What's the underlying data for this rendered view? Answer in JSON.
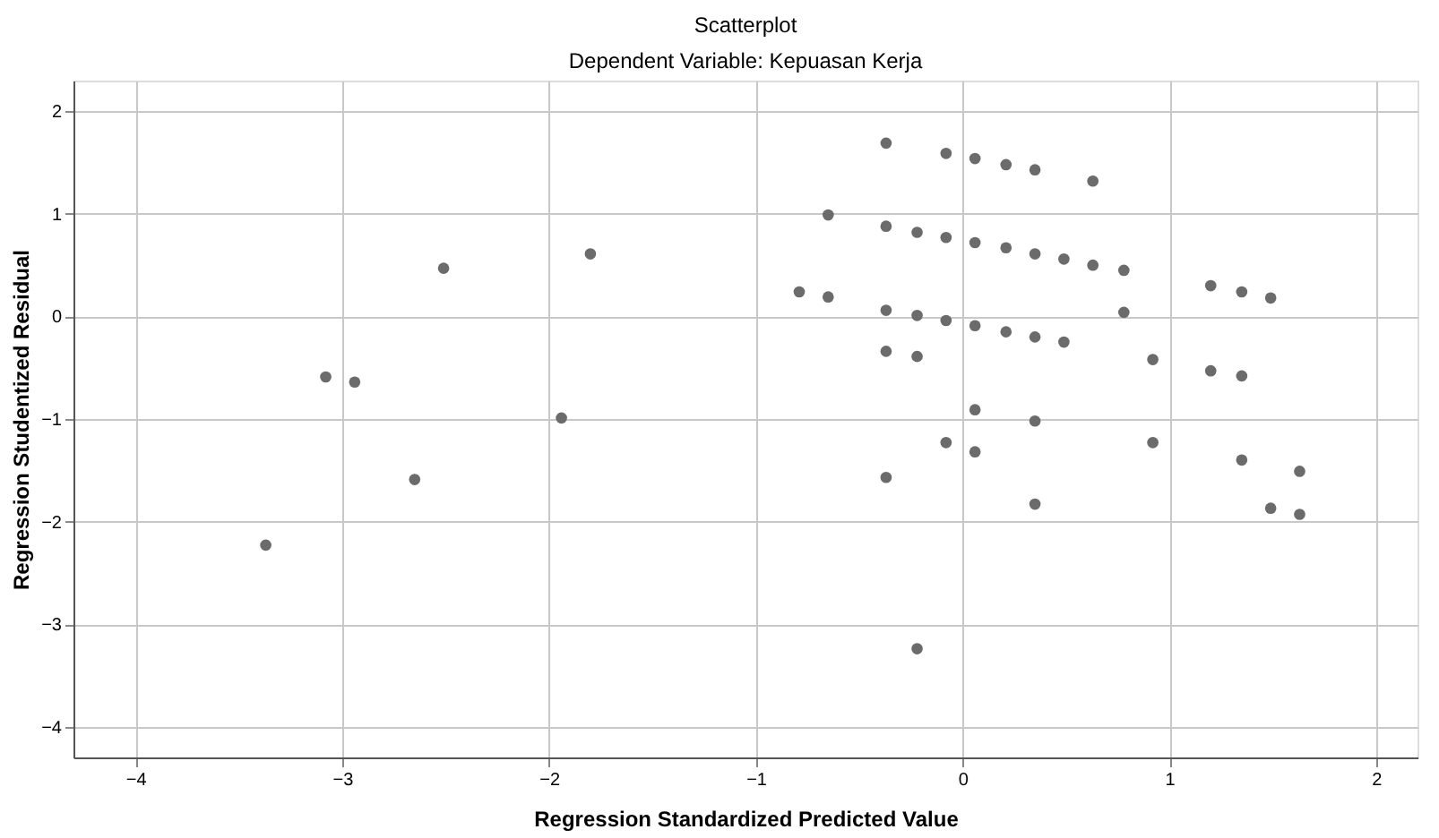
{
  "chart_data": {
    "type": "scatter",
    "title": "Scatterplot",
    "subtitle": "Dependent Variable: Kepuasan Kerja",
    "xlabel": "Regression Standardized Predicted Value",
    "ylabel": "Regression Studentized Residual",
    "x": [
      -3.37,
      -3.08,
      -2.94,
      -2.65,
      -2.51,
      -1.94,
      -1.8,
      -0.37,
      -0.08,
      0.06,
      0.21,
      0.35,
      0.63,
      -0.65,
      -0.37,
      -0.22,
      -0.08,
      0.06,
      0.21,
      0.35,
      0.49,
      0.63,
      0.78,
      -0.79,
      -0.65,
      1.2,
      1.35,
      1.49,
      -0.37,
      -0.22,
      -0.08,
      0.06,
      0.21,
      0.35,
      0.49,
      0.78,
      -0.37,
      -0.22,
      0.92,
      1.2,
      1.35,
      0.06,
      0.35,
      -0.08,
      0.06,
      0.92,
      1.35,
      1.63,
      -0.37,
      0.35,
      1.49,
      1.63,
      -0.22
    ],
    "series": [
      {
        "color": "#6b6b6b",
        "values": [
          -2.23,
          -0.59,
          -0.64,
          -1.59,
          0.47,
          -0.99,
          0.61,
          1.69,
          1.59,
          1.54,
          1.48,
          1.43,
          1.32,
          0.99,
          0.88,
          0.82,
          0.77,
          0.72,
          0.67,
          0.61,
          0.56,
          0.5,
          0.45,
          0.24,
          0.19,
          0.3,
          0.24,
          0.18,
          0.06,
          0.01,
          -0.04,
          -0.09,
          -0.15,
          -0.2,
          -0.25,
          0.04,
          -0.34,
          -0.39,
          -0.42,
          -0.53,
          -0.58,
          -0.91,
          -1.02,
          -1.23,
          -1.32,
          -1.23,
          -1.4,
          -1.51,
          -1.57,
          -1.83,
          -1.87,
          -1.93,
          -3.24
        ]
      }
    ],
    "xlim": [
      -4.3,
      2.2
    ],
    "ylim": [
      -4.3,
      2.3
    ],
    "xticks": [
      -4,
      -3,
      -2,
      -1,
      0,
      1,
      2
    ],
    "yticks": [
      -4,
      -3,
      -2,
      -1,
      0,
      1,
      2
    ],
    "grid": true,
    "marker": "circle"
  }
}
